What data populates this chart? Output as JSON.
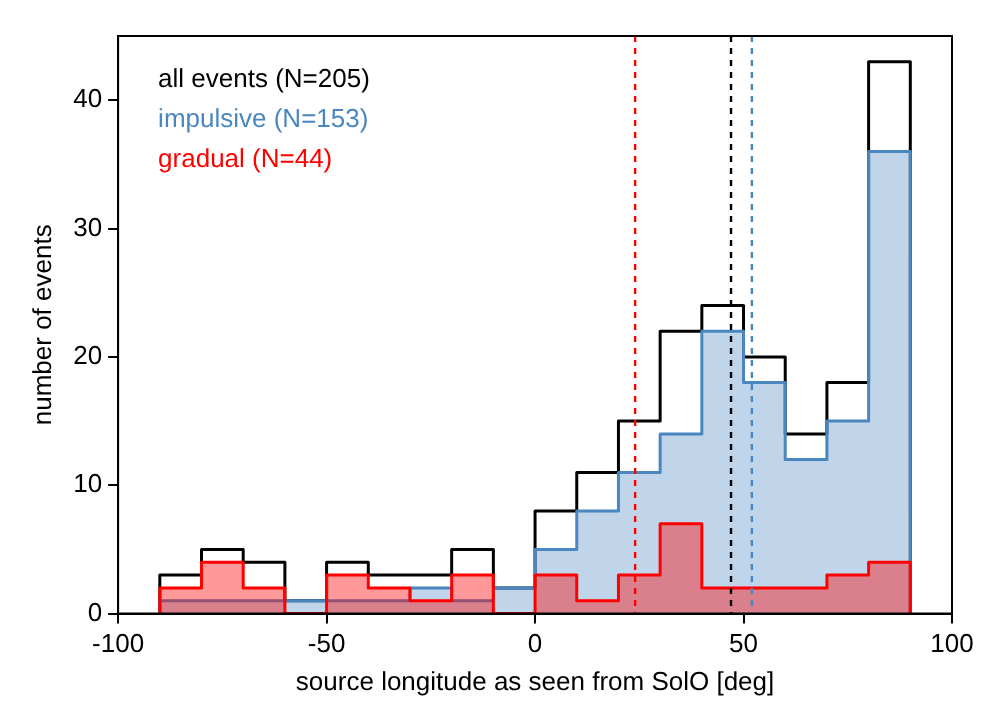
{
  "chart_data": {
    "type": "histogram",
    "xlabel": "source longitude as seen from SolO [deg]",
    "ylabel": "number of events",
    "bins": [
      -90,
      -80,
      -70,
      -60,
      -50,
      -40,
      -30,
      -20,
      -10,
      0,
      10,
      20,
      30,
      40,
      50,
      60,
      70,
      80,
      90
    ],
    "series": [
      {
        "name": "all events (N=205)",
        "color": "#000000",
        "values": [
          3,
          5,
          4,
          1,
          4,
          3,
          3,
          5,
          2,
          8,
          11,
          15,
          22,
          24,
          20,
          14,
          18,
          43
        ]
      },
      {
        "name": "impulsive (N=153)",
        "color": "#4a86c0",
        "values": [
          1,
          1,
          1,
          1,
          1,
          1,
          2,
          1,
          2,
          5,
          8,
          11,
          14,
          22,
          18,
          12,
          15,
          36
        ]
      },
      {
        "name": "gradual (N=44)",
        "color": "#ff0000",
        "values": [
          2,
          4,
          2,
          0,
          3,
          2,
          1,
          3,
          0,
          3,
          1,
          3,
          7,
          2,
          2,
          2,
          3,
          4
        ]
      }
    ],
    "xlim": [
      -100,
      100
    ],
    "xticks": [
      -100,
      -50,
      0,
      50,
      100
    ],
    "ylim": [
      0,
      45
    ],
    "yticks": [
      0,
      10,
      20,
      30,
      40
    ],
    "ref_lines": [
      {
        "axis": "x",
        "value": 24,
        "color": "#ff0000",
        "line_style": "dashed"
      },
      {
        "axis": "x",
        "value": 47,
        "color": "#000000",
        "line_style": "dashed"
      },
      {
        "axis": "x",
        "value": 52,
        "color": "#4a86c0",
        "line_style": "dashed"
      }
    ],
    "grid": false,
    "legend": "top left"
  }
}
